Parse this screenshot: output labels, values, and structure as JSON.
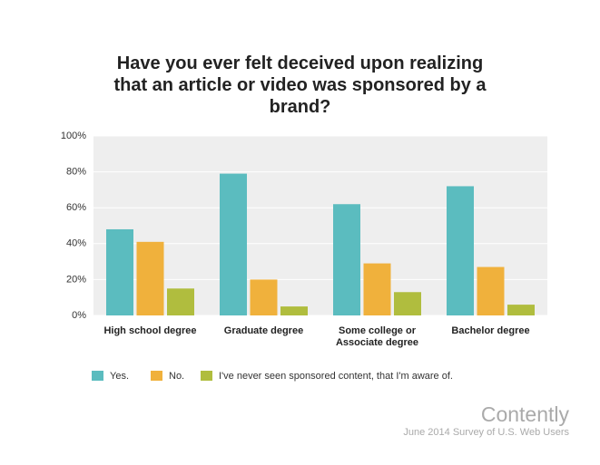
{
  "chart_data": {
    "type": "bar",
    "title": "Have you ever felt deceived upon realizing that an article or video was sponsored by a brand?",
    "categories": [
      "High school degree",
      "Graduate degree",
      "Some college or Associate degree",
      "Bachelor degree"
    ],
    "series": [
      {
        "name": "Yes.",
        "color": "#5bbcbf",
        "values": [
          48,
          79,
          62,
          72
        ]
      },
      {
        "name": "No.",
        "color": "#f0b13c",
        "values": [
          41,
          20,
          29,
          27
        ]
      },
      {
        "name": "I've never seen sponsored content, that I'm aware of.",
        "color": "#b0bd3e",
        "values": [
          15,
          5,
          13,
          6
        ]
      }
    ],
    "ylim": [
      0,
      100
    ],
    "yticks": [
      {
        "value": 0,
        "label": "0%"
      },
      {
        "value": 20,
        "label": "20%"
      },
      {
        "value": 40,
        "label": "40%"
      },
      {
        "value": 60,
        "label": "60%"
      },
      {
        "value": 80,
        "label": "80%"
      },
      {
        "value": 100,
        "label": "100%"
      }
    ],
    "grid": true,
    "brand": "Contently",
    "source": "June 2014 Survey of U.S. Web Users"
  }
}
